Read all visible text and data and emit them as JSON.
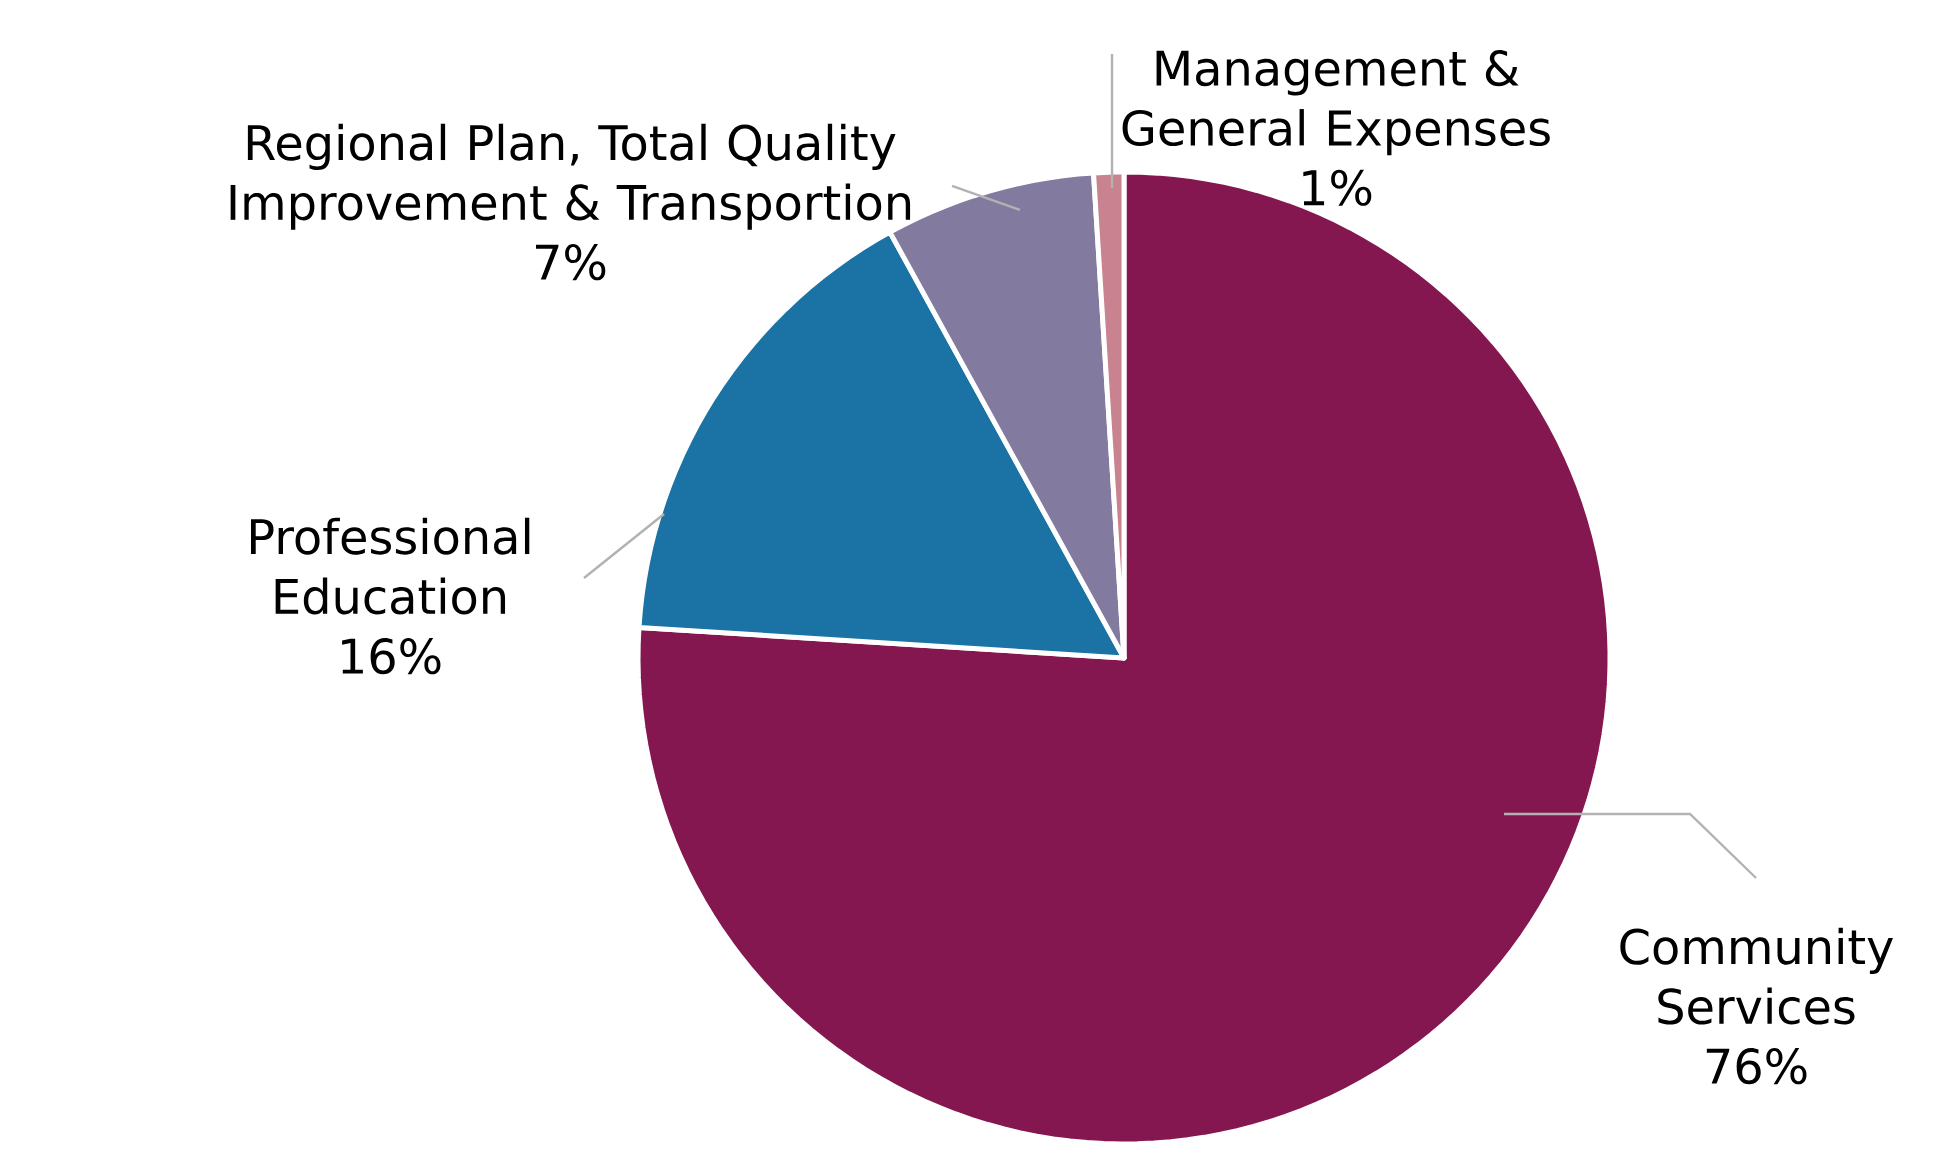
{
  "chart_data": {
    "type": "pie",
    "categories": [
      "Community Services",
      "Professional Education",
      "Regional Plan, Total Quality Improvement & Transportion",
      "Management & General Expenses"
    ],
    "values": [
      76,
      16,
      7,
      1
    ],
    "colors": [
      "#84174f",
      "#1a73a4",
      "#827b9f",
      "#c9828f"
    ],
    "value_labels": [
      "76%",
      "16%",
      "7%",
      "1%"
    ]
  }
}
